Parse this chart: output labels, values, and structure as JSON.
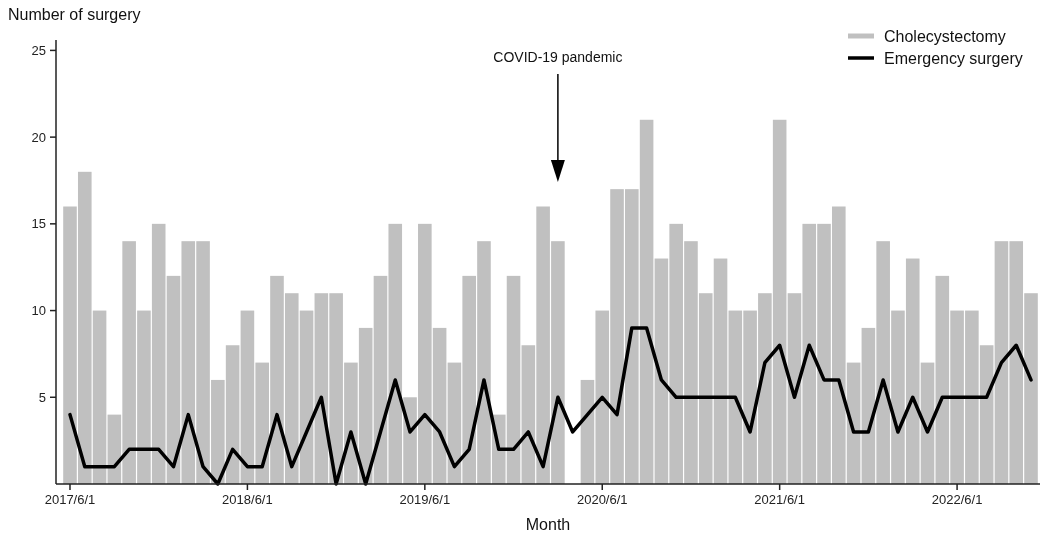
{
  "chart_data": {
    "type": "bar",
    "xlabel": "Month",
    "ylabel": "Number of surgery",
    "categories": [
      "2017/6/1",
      null,
      null,
      null,
      null,
      null,
      null,
      null,
      null,
      null,
      null,
      null,
      "2018/6/1",
      null,
      null,
      null,
      null,
      null,
      null,
      null,
      null,
      null,
      null,
      null,
      "2019/6/1",
      null,
      null,
      null,
      null,
      null,
      null,
      null,
      null,
      null,
      null,
      null,
      "2020/6/1",
      null,
      null,
      null,
      null,
      null,
      null,
      null,
      null,
      null,
      null,
      null,
      "2021/6/1",
      null,
      null,
      null,
      null,
      null,
      null,
      null,
      null,
      null,
      null,
      null,
      "2022/6/1",
      null,
      null,
      null,
      null,
      null
    ],
    "series": [
      {
        "name": "Cholecystectomy",
        "color": "#c0c0c0",
        "values": [
          16,
          18,
          10,
          4,
          14,
          10,
          15,
          12,
          14,
          14,
          6,
          8,
          10,
          7,
          12,
          11,
          10,
          11,
          11,
          7,
          9,
          12,
          15,
          5,
          15,
          9,
          7,
          12,
          14,
          4,
          12,
          8,
          16,
          14,
          0,
          6,
          10,
          17,
          17,
          21,
          13,
          15,
          14,
          11,
          13,
          10,
          10,
          11,
          21,
          11,
          15,
          15,
          16,
          7,
          9,
          14,
          10,
          13,
          7,
          12,
          10,
          10,
          8,
          14,
          14,
          11
        ]
      },
      {
        "name": "Emergency surgery",
        "type": "line",
        "color": "#000000",
        "values": [
          4,
          1,
          1,
          1,
          2,
          2,
          2,
          1,
          4,
          1,
          0,
          2,
          1,
          1,
          4,
          1,
          3,
          5,
          0,
          3,
          0,
          3,
          6,
          3,
          4,
          3,
          1,
          2,
          6,
          2,
          2,
          3,
          1,
          5,
          3,
          4,
          5,
          4,
          9,
          9,
          6,
          5,
          5,
          5,
          5,
          5,
          3,
          7,
          8,
          5,
          8,
          6,
          6,
          3,
          3,
          6,
          3,
          5,
          3,
          5,
          5,
          5,
          5,
          7,
          8,
          6
        ]
      }
    ],
    "ylim": [
      0,
      25.6
    ],
    "yticks": [
      5,
      10,
      15,
      20,
      25
    ],
    "grid": false,
    "legend": "top right",
    "annotations": [
      "COVID-19 pandemic"
    ]
  }
}
